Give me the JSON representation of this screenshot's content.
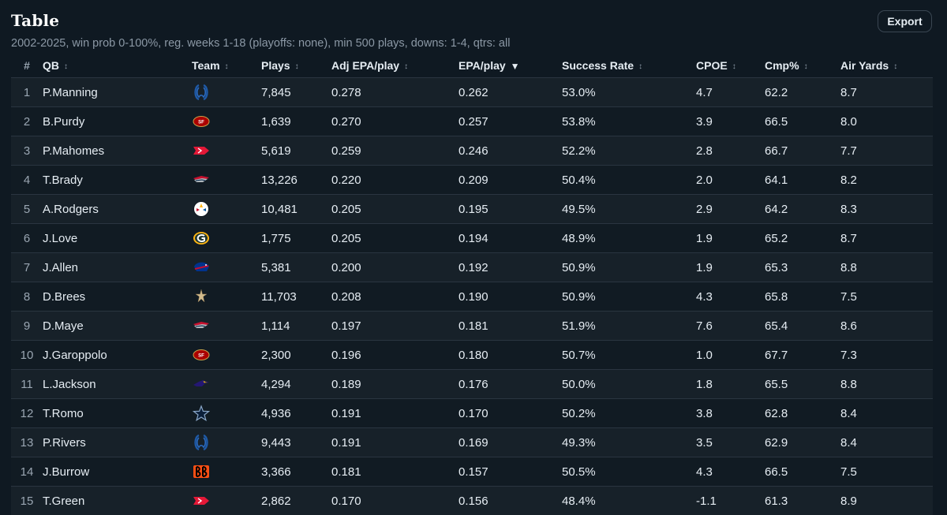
{
  "header": {
    "title": "Table",
    "subtitle": "2002-2025, win prob 0-100%, reg. weeks 1-18 (playoffs: none), min 500 plays, downs: 1-4, qtrs: all",
    "export_label": "Export"
  },
  "table": {
    "columns": [
      {
        "key": "rank",
        "label": "#",
        "sort": "none"
      },
      {
        "key": "qb",
        "label": "QB",
        "sort": "sortable"
      },
      {
        "key": "team",
        "label": "Team",
        "sort": "sortable"
      },
      {
        "key": "plays",
        "label": "Plays",
        "sort": "sortable"
      },
      {
        "key": "adj_epa",
        "label": "Adj EPA/play",
        "sort": "sortable"
      },
      {
        "key": "epa",
        "label": "EPA/play",
        "sort": "desc"
      },
      {
        "key": "success",
        "label": "Success Rate",
        "sort": "sortable"
      },
      {
        "key": "cpoe",
        "label": "CPOE",
        "sort": "sortable"
      },
      {
        "key": "cmp",
        "label": "Cmp%",
        "sort": "sortable"
      },
      {
        "key": "air",
        "label": "Air Yards",
        "sort": "sortable"
      }
    ],
    "rows": [
      {
        "rank": "1",
        "qb": "P.Manning",
        "team": "colts-logo",
        "plays": "7,845",
        "adj_epa": "0.278",
        "epa": "0.262",
        "success": "53.0%",
        "cpoe": "4.7",
        "cmp": "62.2",
        "air": "8.7"
      },
      {
        "rank": "2",
        "qb": "B.Purdy",
        "team": "49ers-logo",
        "plays": "1,639",
        "adj_epa": "0.270",
        "epa": "0.257",
        "success": "53.8%",
        "cpoe": "3.9",
        "cmp": "66.5",
        "air": "8.0"
      },
      {
        "rank": "3",
        "qb": "P.Mahomes",
        "team": "chiefs-logo",
        "plays": "5,619",
        "adj_epa": "0.259",
        "epa": "0.246",
        "success": "52.2%",
        "cpoe": "2.8",
        "cmp": "66.7",
        "air": "7.7"
      },
      {
        "rank": "4",
        "qb": "T.Brady",
        "team": "patriots-logo",
        "plays": "13,226",
        "adj_epa": "0.220",
        "epa": "0.209",
        "success": "50.4%",
        "cpoe": "2.0",
        "cmp": "64.1",
        "air": "8.2"
      },
      {
        "rank": "5",
        "qb": "A.Rodgers",
        "team": "steelers-logo",
        "plays": "10,481",
        "adj_epa": "0.205",
        "epa": "0.195",
        "success": "49.5%",
        "cpoe": "2.9",
        "cmp": "64.2",
        "air": "8.3"
      },
      {
        "rank": "6",
        "qb": "J.Love",
        "team": "packers-logo",
        "plays": "1,775",
        "adj_epa": "0.205",
        "epa": "0.194",
        "success": "48.9%",
        "cpoe": "1.9",
        "cmp": "65.2",
        "air": "8.7"
      },
      {
        "rank": "7",
        "qb": "J.Allen",
        "team": "bills-logo",
        "plays": "5,381",
        "adj_epa": "0.200",
        "epa": "0.192",
        "success": "50.9%",
        "cpoe": "1.9",
        "cmp": "65.3",
        "air": "8.8"
      },
      {
        "rank": "8",
        "qb": "D.Brees",
        "team": "saints-logo",
        "plays": "11,703",
        "adj_epa": "0.208",
        "epa": "0.190",
        "success": "50.9%",
        "cpoe": "4.3",
        "cmp": "65.8",
        "air": "7.5"
      },
      {
        "rank": "9",
        "qb": "D.Maye",
        "team": "patriots-logo",
        "plays": "1,114",
        "adj_epa": "0.197",
        "epa": "0.181",
        "success": "51.9%",
        "cpoe": "7.6",
        "cmp": "65.4",
        "air": "8.6"
      },
      {
        "rank": "10",
        "qb": "J.Garoppolo",
        "team": "49ers-logo",
        "plays": "2,300",
        "adj_epa": "0.196",
        "epa": "0.180",
        "success": "50.7%",
        "cpoe": "1.0",
        "cmp": "67.7",
        "air": "7.3"
      },
      {
        "rank": "11",
        "qb": "L.Jackson",
        "team": "ravens-logo",
        "plays": "4,294",
        "adj_epa": "0.189",
        "epa": "0.176",
        "success": "50.0%",
        "cpoe": "1.8",
        "cmp": "65.5",
        "air": "8.8"
      },
      {
        "rank": "12",
        "qb": "T.Romo",
        "team": "cowboys-logo",
        "plays": "4,936",
        "adj_epa": "0.191",
        "epa": "0.170",
        "success": "50.2%",
        "cpoe": "3.8",
        "cmp": "62.8",
        "air": "8.4"
      },
      {
        "rank": "13",
        "qb": "P.Rivers",
        "team": "colts-logo",
        "plays": "9,443",
        "adj_epa": "0.191",
        "epa": "0.169",
        "success": "49.3%",
        "cpoe": "3.5",
        "cmp": "62.9",
        "air": "8.4"
      },
      {
        "rank": "14",
        "qb": "J.Burrow",
        "team": "bengals-logo",
        "plays": "3,366",
        "adj_epa": "0.181",
        "epa": "0.157",
        "success": "50.5%",
        "cpoe": "4.3",
        "cmp": "66.5",
        "air": "7.5"
      },
      {
        "rank": "15",
        "qb": "T.Green",
        "team": "chiefs-logo",
        "plays": "2,862",
        "adj_epa": "0.170",
        "epa": "0.156",
        "success": "48.4%",
        "cpoe": "-1.1",
        "cmp": "61.3",
        "air": "8.9"
      }
    ]
  },
  "colors": {
    "background": "#0f1922",
    "row_odd": "#172129",
    "row_even": "#111b23",
    "text": "#e6edf3",
    "muted": "#8b98a5"
  }
}
